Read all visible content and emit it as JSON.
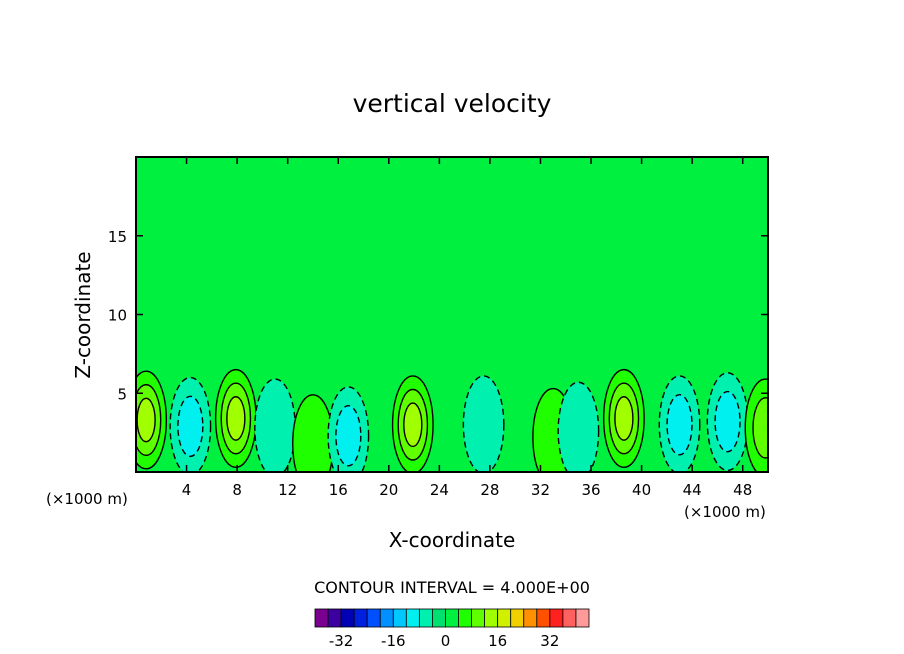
{
  "chart_data": {
    "type": "heatmap",
    "title": "vertical velocity",
    "xlabel": "X-coordinate",
    "ylabel": "Z-coordinate",
    "x_unit_left": "(×1000 m)",
    "x_unit_right": "(×1000 m)",
    "xlim": [
      0,
      50
    ],
    "ylim": [
      0,
      20
    ],
    "x_ticks": [
      4,
      8,
      12,
      16,
      20,
      24,
      28,
      32,
      36,
      40,
      44,
      48
    ],
    "y_ticks": [
      5,
      10,
      15
    ],
    "contour_interval_label": "CONTOUR INTERVAL = 4.000E+00",
    "colorbar": {
      "levels": [
        -40,
        -36,
        -32,
        -28,
        -24,
        -20,
        -16,
        -12,
        -8,
        -4,
        0,
        4,
        8,
        12,
        16,
        20,
        24,
        28,
        32,
        36,
        40
      ],
      "colors": [
        "#7b008f",
        "#3c00a0",
        "#0000b4",
        "#0020e0",
        "#0050ff",
        "#0090ff",
        "#00c8ff",
        "#00f0f0",
        "#00f0b0",
        "#00e070",
        "#00f040",
        "#20ff00",
        "#60ff00",
        "#a0ff00",
        "#d0f000",
        "#f0d000",
        "#ff9000",
        "#ff5000",
        "#ff2020",
        "#ff6060",
        "#ff9a9a"
      ],
      "tick_labels": [
        "-32",
        "-16",
        "0",
        "16",
        "32"
      ],
      "tick_values": [
        -32,
        -16,
        0,
        16,
        32
      ]
    },
    "background_level": 0,
    "features": [
      {
        "x": 0.8,
        "z": 3.3,
        "value": 14,
        "kind": "updraft"
      },
      {
        "x": 4.3,
        "z": 2.9,
        "value": -9,
        "kind": "downdraft"
      },
      {
        "x": 7.9,
        "z": 3.4,
        "value": 14,
        "kind": "updraft"
      },
      {
        "x": 11.0,
        "z": 2.8,
        "value": -4,
        "kind": "downdraft"
      },
      {
        "x": 14.0,
        "z": 1.8,
        "value": 6,
        "kind": "updraft"
      },
      {
        "x": 16.8,
        "z": 2.3,
        "value": -9,
        "kind": "downdraft"
      },
      {
        "x": 21.9,
        "z": 3.0,
        "value": 14,
        "kind": "updraft"
      },
      {
        "x": 27.5,
        "z": 3.0,
        "value": -5,
        "kind": "downdraft"
      },
      {
        "x": 33.0,
        "z": 2.2,
        "value": 6,
        "kind": "updraft"
      },
      {
        "x": 35.0,
        "z": 2.6,
        "value": -5,
        "kind": "downdraft"
      },
      {
        "x": 38.6,
        "z": 3.4,
        "value": 14,
        "kind": "updraft"
      },
      {
        "x": 43.0,
        "z": 3.0,
        "value": -10,
        "kind": "downdraft"
      },
      {
        "x": 46.8,
        "z": 3.2,
        "value": -9,
        "kind": "downdraft"
      },
      {
        "x": 49.8,
        "z": 2.8,
        "value": 10,
        "kind": "updraft"
      }
    ]
  }
}
